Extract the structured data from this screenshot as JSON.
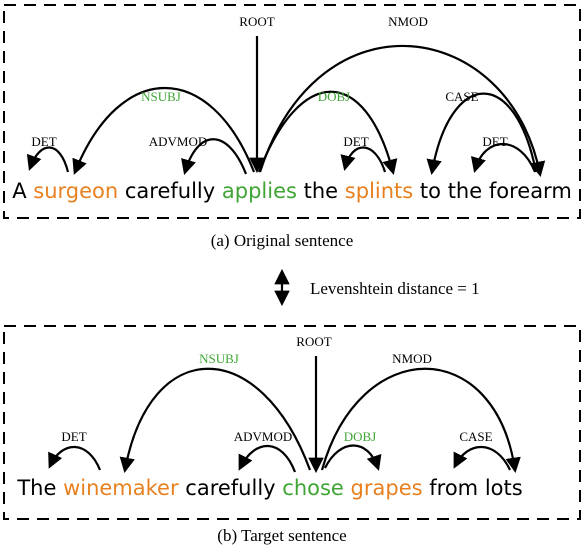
{
  "colors": {
    "black": "#000000",
    "orange": "#e8801f",
    "green": "#3fa535"
  },
  "panel_a": {
    "root_label": "ROOT",
    "labels": {
      "det1": "DET",
      "nsubj": "NSUBJ",
      "advmod": "ADVMOD",
      "dobj": "DOBJ",
      "det2": "DET",
      "nmod": "NMOD",
      "case": "CASE",
      "det3": "DET"
    },
    "words": [
      "A",
      "surgeon",
      "carefully",
      "applies",
      "the",
      "splints",
      "to",
      "the",
      "forearm"
    ],
    "caption": "(a) Original sentence"
  },
  "distance_label": "Levenshtein distance = 1",
  "panel_b": {
    "root_label": "ROOT",
    "labels": {
      "det": "DET",
      "nsubj": "NSUBJ",
      "advmod": "ADVMOD",
      "dobj": "DOBJ",
      "nmod": "NMOD",
      "case": "CASE"
    },
    "words": [
      "The",
      "winemaker",
      "carefully",
      "chose",
      "grapes",
      "from",
      "lots"
    ],
    "caption": "(b) Target sentence"
  }
}
